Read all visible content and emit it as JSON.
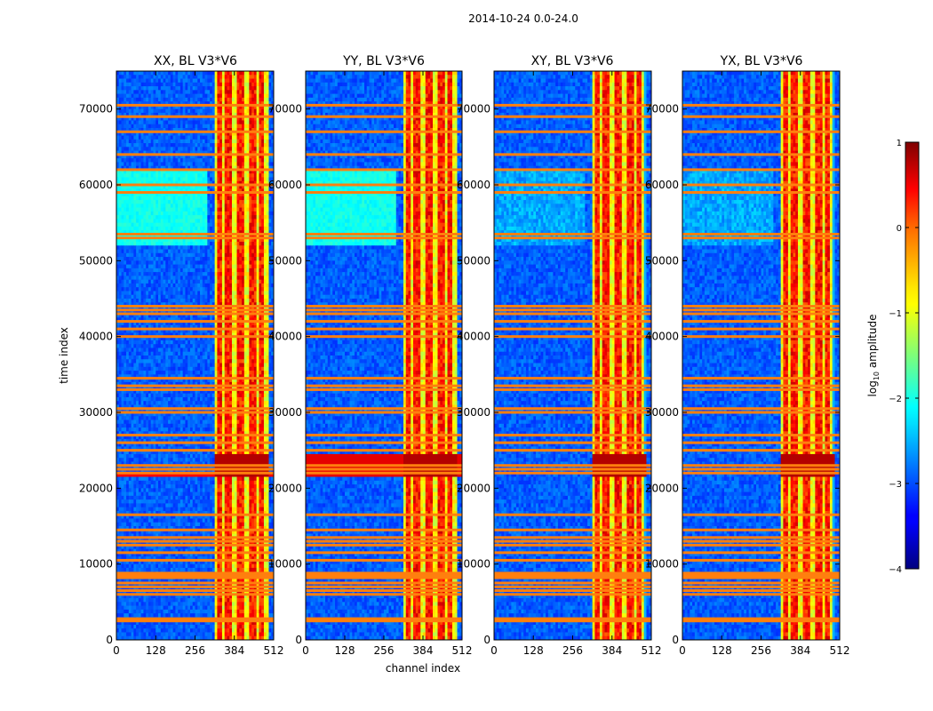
{
  "chart_data": {
    "type": "heatmap",
    "suptitle": "2014-10-24 0.0-24.0",
    "xlabel": "channel index",
    "ylabel": "time index",
    "xlim": [
      0,
      512
    ],
    "ylim": [
      0,
      75000
    ],
    "xticks": [
      0,
      128,
      256,
      384,
      512
    ],
    "yticks": [
      0,
      10000,
      20000,
      30000,
      40000,
      50000,
      60000,
      70000
    ],
    "panels": [
      {
        "title": "XX, BL V3*V6",
        "pol": "XX"
      },
      {
        "title": "YY, BL V3*V6",
        "pol": "YY"
      },
      {
        "title": "XY, BL V3*V6",
        "pol": "XY"
      },
      {
        "title": "YX, BL V3*V6",
        "pol": "YX"
      }
    ],
    "colorbar": {
      "label_prefix": "log",
      "label_sub": "10",
      "label_suffix": " amplitude",
      "range": [
        -4,
        1
      ],
      "ticks": [
        1,
        0,
        -1,
        -2,
        -3,
        -4
      ],
      "tick_labels": [
        "1",
        "0",
        "−1",
        "−2",
        "−3",
        "−4"
      ],
      "colormap": "jet"
    },
    "bright_channel_bands": [
      [
        326,
        340
      ],
      [
        352,
        372
      ],
      [
        392,
        412
      ],
      [
        432,
        452
      ],
      [
        465,
        480
      ]
    ],
    "orange_flag_rows": [
      2500,
      2800,
      6000,
      6500,
      7000,
      7500,
      8200,
      8500,
      8800,
      10500,
      11500,
      12500,
      13000,
      13500,
      14500,
      16500,
      22000,
      22500,
      23000,
      25000,
      26000,
      27000,
      30000,
      30500,
      33000,
      33500,
      34500,
      40000,
      41000,
      42000,
      43000,
      43500,
      44000,
      53000,
      53500,
      59000,
      60000,
      62000,
      64000,
      67000,
      69000,
      70500
    ],
    "strong_time_band": [
      21500,
      24500
    ],
    "cyan_time_band": [
      52000,
      62000
    ]
  }
}
